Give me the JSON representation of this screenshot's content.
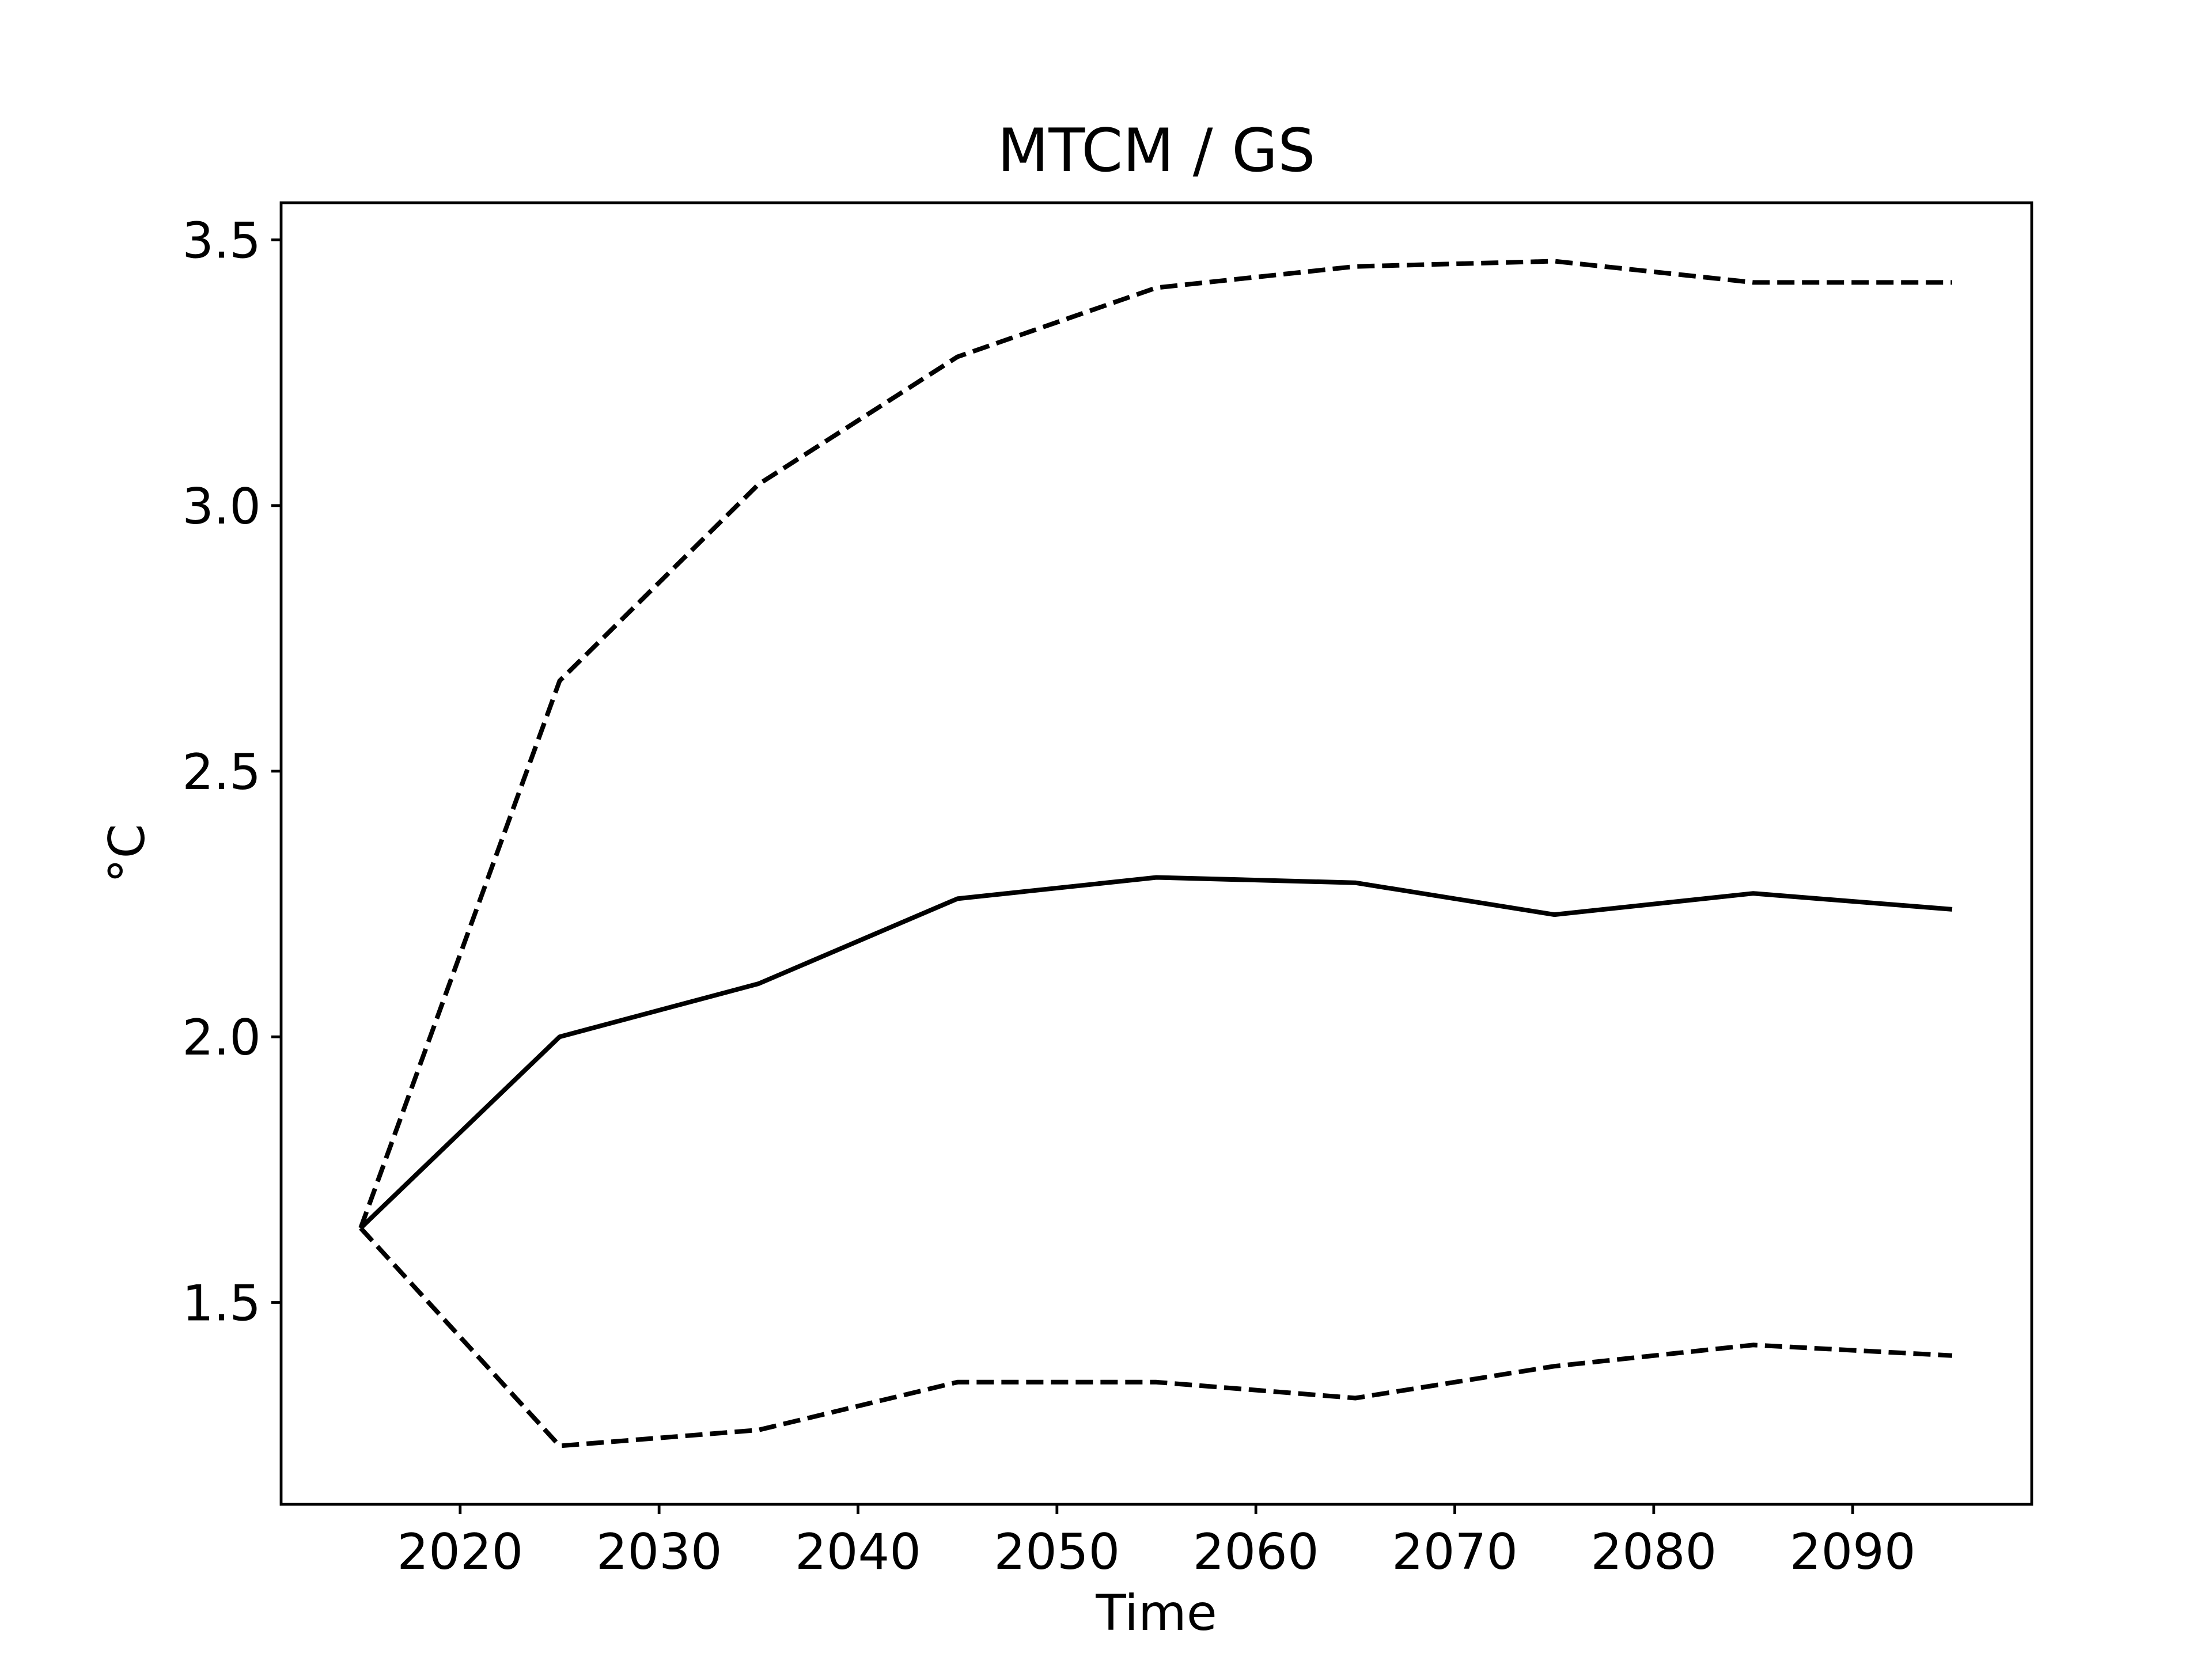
{
  "chart_data": {
    "type": "line",
    "title": "MTCM / GS",
    "xlabel": "Time",
    "ylabel": "°C",
    "xlim": [
      2011,
      2099
    ],
    "ylim": [
      1.12,
      3.57
    ],
    "xticks": [
      2020,
      2030,
      2040,
      2050,
      2060,
      2070,
      2080,
      2090
    ],
    "xtick_labels": [
      "2020",
      "2030",
      "2040",
      "2050",
      "2060",
      "2070",
      "2080",
      "2090"
    ],
    "yticks": [
      1.5,
      2.0,
      2.5,
      3.0,
      3.5
    ],
    "ytick_labels": [
      "1.5",
      "2.0",
      "2.5",
      "3.0",
      "3.5"
    ],
    "grid": false,
    "legend": false,
    "x": [
      2015,
      2025,
      2035,
      2045,
      2055,
      2065,
      2075,
      2085,
      2095
    ],
    "series": [
      {
        "style": "solid",
        "color": "#000000",
        "values": [
          1.64,
          2.0,
          2.1,
          2.26,
          2.3,
          2.29,
          2.23,
          2.27,
          2.24
        ]
      },
      {
        "style": "dashed",
        "color": "#000000",
        "values": [
          1.64,
          2.67,
          3.04,
          3.28,
          3.41,
          3.45,
          3.46,
          3.42,
          3.42
        ]
      },
      {
        "style": "dashed",
        "color": "#000000",
        "values": [
          1.64,
          1.23,
          1.26,
          1.35,
          1.35,
          1.32,
          1.38,
          1.42,
          1.4
        ]
      }
    ]
  }
}
